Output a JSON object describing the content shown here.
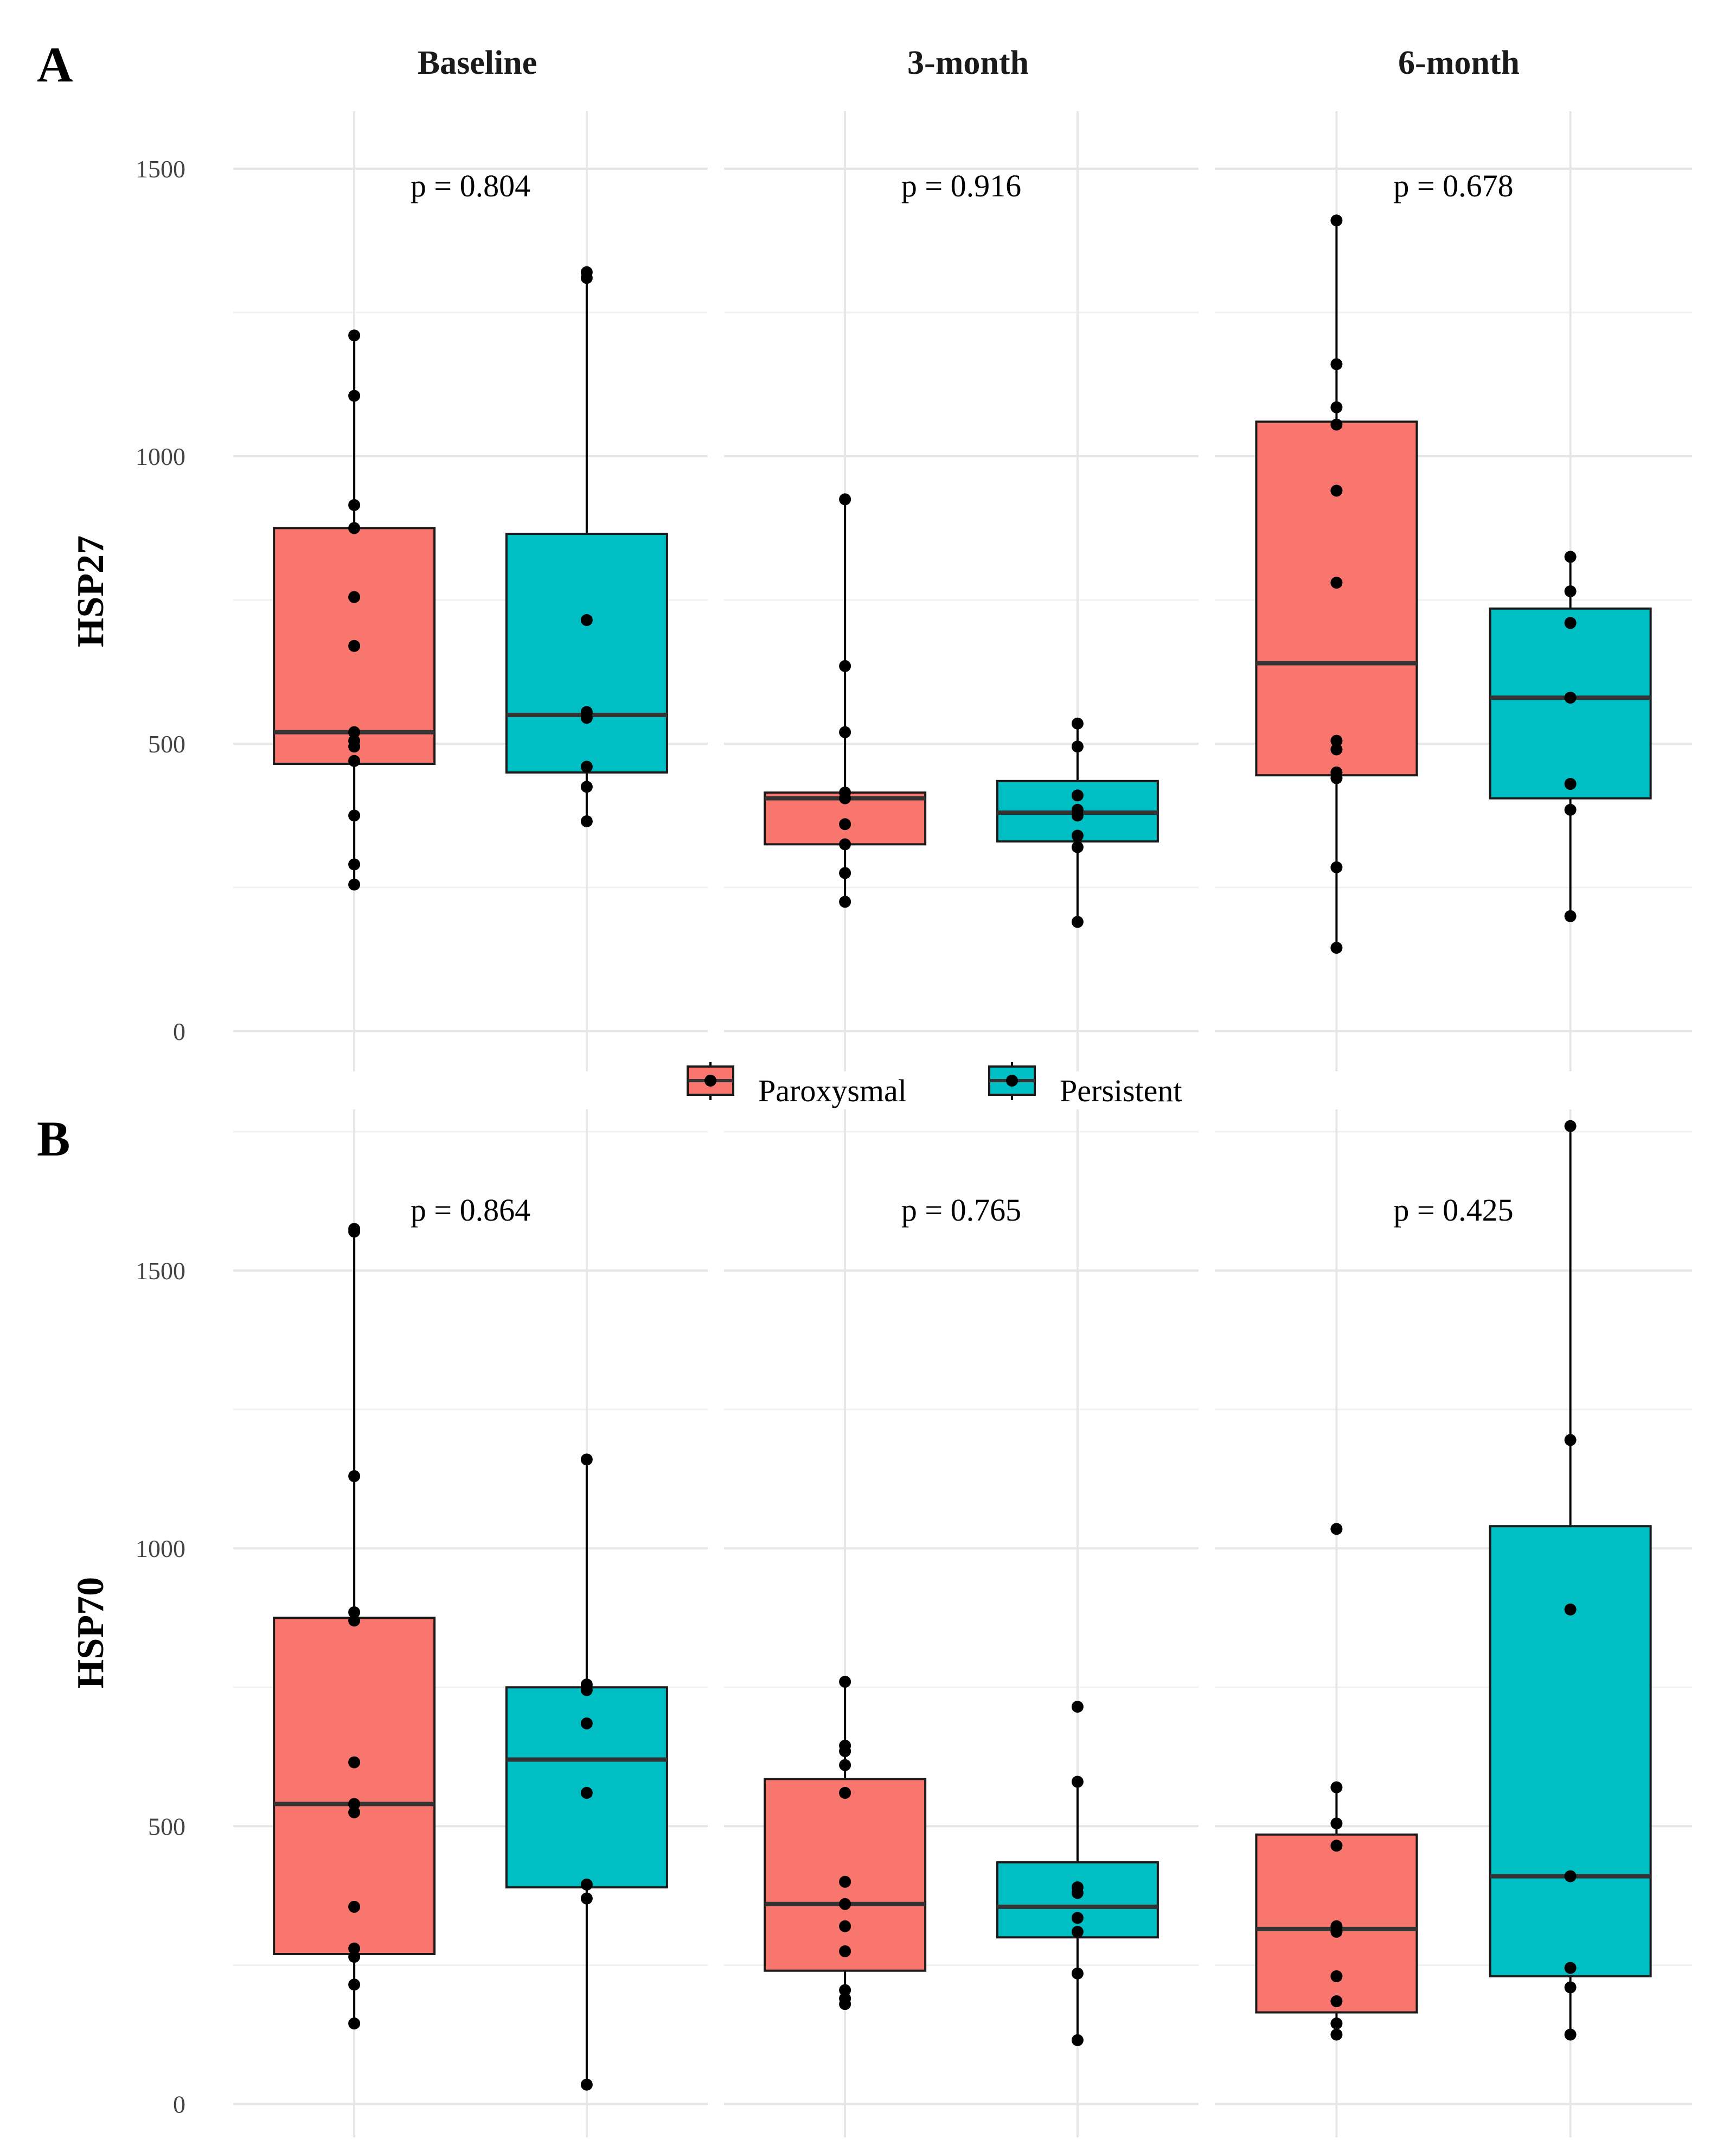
{
  "colors": {
    "Paroxysmal": "#F8766D",
    "Persistent": "#00BFC4"
  },
  "facets": [
    "Baseline",
    "3-month",
    "6-month"
  ],
  "legend": {
    "items": [
      {
        "label": "Paroxysmal",
        "color": "#F8766D"
      },
      {
        "label": "Persistent",
        "color": "#00BFC4"
      }
    ]
  },
  "chart_data": [
    {
      "type": "boxplot",
      "panel": "A",
      "ylabel": "HSP27",
      "ylim": [
        -70,
        1600
      ],
      "yticks": [
        0,
        500,
        1000,
        1500
      ],
      "y_minor": [
        250,
        750,
        1250
      ],
      "facets": [
        "Baseline",
        "3-month",
        "6-month"
      ],
      "groups": [
        "Paroxysmal",
        "Persistent"
      ],
      "p_values": [
        "p = 0.804",
        "p = 0.916",
        "p = 0.678"
      ],
      "boxes": [
        [
          {
            "group": "Paroxysmal",
            "q1": 465,
            "median": 520,
            "q3": 875,
            "whisker_low": 255,
            "whisker_high": 1210,
            "points": [
              255,
              290,
              375,
              470,
              495,
              505,
              520,
              670,
              755,
              875,
              915,
              1105,
              1210
            ]
          },
          {
            "group": "Persistent",
            "q1": 450,
            "median": 550,
            "q3": 865,
            "whisker_low": 365,
            "whisker_high": 1320,
            "points": [
              365,
              425,
              460,
              545,
              555,
              715,
              1310,
              1320
            ]
          }
        ],
        [
          {
            "group": "Paroxysmal",
            "q1": 325,
            "median": 405,
            "q3": 415,
            "whisker_low": 225,
            "whisker_high": 925,
            "points": [
              225,
              275,
              325,
              360,
              405,
              415,
              520,
              635,
              925
            ]
          },
          {
            "group": "Persistent",
            "q1": 330,
            "median": 380,
            "q3": 435,
            "whisker_low": 190,
            "whisker_high": 535,
            "points": [
              190,
              320,
              340,
              375,
              385,
              410,
              495,
              535
            ]
          }
        ],
        [
          {
            "group": "Paroxysmal",
            "q1": 445,
            "median": 640,
            "q3": 1060,
            "whisker_low": 145,
            "whisker_high": 1410,
            "points": [
              145,
              285,
              440,
              450,
              490,
              505,
              780,
              940,
              1055,
              1085,
              1160,
              1410
            ]
          },
          {
            "group": "Persistent",
            "q1": 405,
            "median": 580,
            "q3": 735,
            "whisker_low": 200,
            "whisker_high": 825,
            "points": [
              200,
              385,
              430,
              580,
              710,
              765,
              825
            ]
          }
        ]
      ]
    },
    {
      "type": "boxplot",
      "panel": "B",
      "ylabel": "HSP70",
      "ylim": [
        -60,
        1790
      ],
      "yticks": [
        0,
        500,
        1000,
        1500
      ],
      "y_minor": [
        250,
        750,
        1250,
        1750
      ],
      "facets": [
        "Baseline",
        "3-month",
        "6-month"
      ],
      "groups": [
        "Paroxysmal",
        "Persistent"
      ],
      "p_values": [
        "p = 0.864",
        "p = 0.765",
        "p = 0.425"
      ],
      "boxes": [
        [
          {
            "group": "Paroxysmal",
            "q1": 270,
            "median": 540,
            "q3": 875,
            "whisker_low": 145,
            "whisker_high": 1575,
            "points": [
              145,
              215,
              265,
              280,
              355,
              525,
              540,
              615,
              870,
              885,
              1130,
              1570,
              1575
            ]
          },
          {
            "group": "Persistent",
            "q1": 390,
            "median": 620,
            "q3": 750,
            "whisker_low": 35,
            "whisker_high": 1160,
            "points": [
              35,
              370,
              395,
              560,
              685,
              745,
              755,
              1160
            ]
          }
        ],
        [
          {
            "group": "Paroxysmal",
            "q1": 240,
            "median": 360,
            "q3": 585,
            "whisker_low": 180,
            "whisker_high": 760,
            "points": [
              180,
              190,
              205,
              275,
              320,
              360,
              400,
              560,
              610,
              635,
              645,
              760
            ]
          },
          {
            "group": "Persistent",
            "q1": 300,
            "median": 355,
            "q3": 435,
            "whisker_low": 115,
            "whisker_high": 580,
            "points": [
              115,
              235,
              310,
              335,
              380,
              390,
              580,
              715
            ]
          }
        ],
        [
          {
            "group": "Paroxysmal",
            "q1": 165,
            "median": 315,
            "q3": 485,
            "whisker_low": 125,
            "whisker_high": 570,
            "points": [
              125,
              145,
              185,
              230,
              310,
              320,
              465,
              505,
              570,
              1035
            ]
          },
          {
            "group": "Persistent",
            "q1": 230,
            "median": 410,
            "q3": 1040,
            "whisker_low": 125,
            "whisker_high": 1760,
            "points": [
              125,
              210,
              245,
              410,
              890,
              1195,
              1760
            ]
          }
        ]
      ]
    }
  ]
}
